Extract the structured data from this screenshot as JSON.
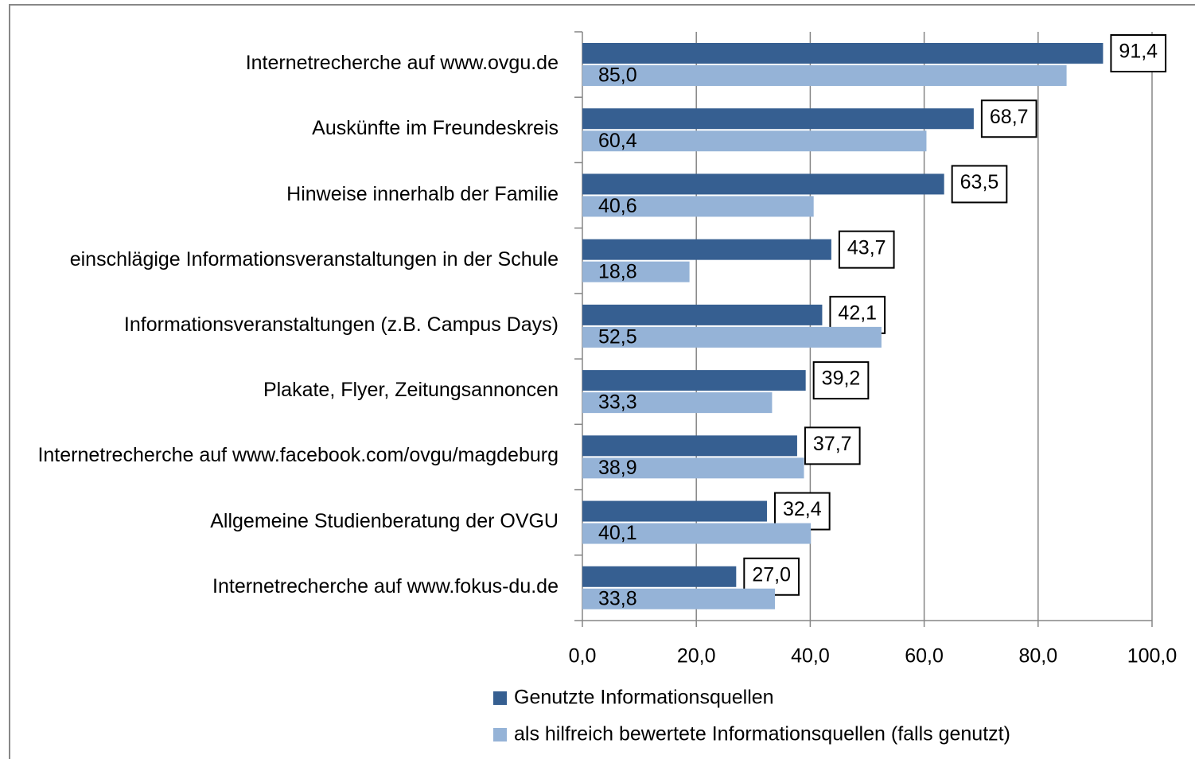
{
  "chart_data": {
    "type": "bar",
    "orientation": "horizontal",
    "categories": [
      "Internetrecherche auf www.ovgu.de",
      "Auskünfte im Freundeskreis",
      "Hinweise innerhalb der Familie",
      "einschlägige Informationsveranstaltungen in der Schule",
      "Informationsveranstaltungen (z.B. Campus Days)",
      "Plakate, Flyer, Zeitungsannoncen",
      "Internetrecherche auf www.facebook.com/ovgu/magdeburg",
      "Allgemeine Studienberatung der OVGU",
      "Internetrecherche auf www.fokus-du.de"
    ],
    "series": [
      {
        "name": "Genutzte Informationsquellen",
        "color": "#365f91",
        "values": [
          91.4,
          68.7,
          63.5,
          43.7,
          42.1,
          39.2,
          37.7,
          32.4,
          27.0
        ],
        "value_labels": [
          "91,4",
          "68,7",
          "63,5",
          "43,7",
          "42,1",
          "39,2",
          "37,7",
          "32,4",
          "27,0"
        ]
      },
      {
        "name": "als hilfreich bewertete Informationsquellen (falls genutzt)",
        "color": "#95b3d7",
        "values": [
          85.0,
          60.4,
          40.6,
          18.8,
          52.5,
          33.3,
          38.9,
          40.1,
          33.8
        ],
        "value_labels": [
          "85,0",
          "60,4",
          "40,6",
          "18,8",
          "52,5",
          "33,3",
          "38,9",
          "40,1",
          "33,8"
        ]
      }
    ],
    "xlim": [
      0,
      100
    ],
    "xticks": [
      {
        "value": 0,
        "label": "0,0"
      },
      {
        "value": 20,
        "label": "20,0"
      },
      {
        "value": 40,
        "label": "40,0"
      },
      {
        "value": 60,
        "label": "60,0"
      },
      {
        "value": 80,
        "label": "80,0"
      },
      {
        "value": 100,
        "label": "100,0"
      }
    ],
    "grid": true,
    "legend": "bottom"
  }
}
